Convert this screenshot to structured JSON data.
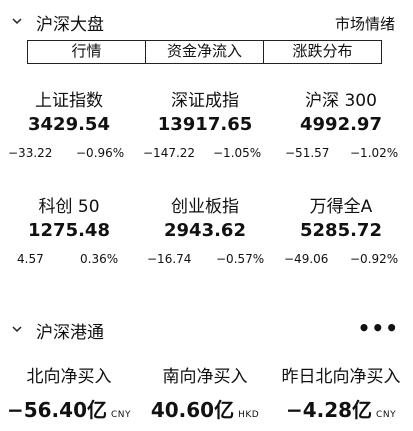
{
  "market": {
    "title": "沪深大盘",
    "right_label": "市场情绪",
    "tabs": [
      "行情",
      "资金净流入",
      "涨跌分布"
    ],
    "indices": [
      {
        "name": "上证指数",
        "value": "3429.54",
        "change": "−33.22",
        "pct": "−0.96%"
      },
      {
        "name": "深证成指",
        "value": "13917.65",
        "change": "−147.22",
        "pct": "−1.05%"
      },
      {
        "name": "沪深 300",
        "value": "4992.97",
        "change": "−51.57",
        "pct": "−1.02%"
      },
      {
        "name": "科创 50",
        "value": "1275.48",
        "change": "4.57",
        "pct": "0.36%"
      },
      {
        "name": "创业板指",
        "value": "2943.62",
        "change": "−16.74",
        "pct": "−0.57%"
      },
      {
        "name": "万得全A",
        "value": "5285.72",
        "change": "−49.06",
        "pct": "−0.92%"
      }
    ]
  },
  "connect": {
    "title": "沪深港通",
    "more": "•••",
    "flows": [
      {
        "name": "北向净买入",
        "value": "−56.40亿",
        "unit": "CNY"
      },
      {
        "name": "南向净买入",
        "value": "40.60亿",
        "unit": "HKD"
      },
      {
        "name": "昨日北向净买入",
        "value": "−4.28亿",
        "unit": "CNY"
      }
    ]
  }
}
